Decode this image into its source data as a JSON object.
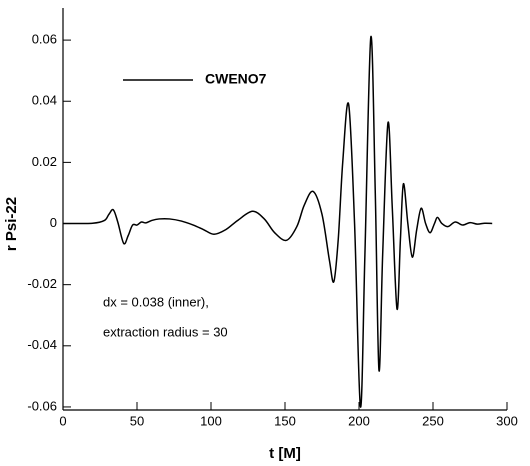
{
  "chart_data": {
    "type": "line",
    "legend": "CWENO7",
    "x_label": "t [M]",
    "y_label": "r Psi-22",
    "annotations": [
      "dx = 0.038 (inner),",
      "extraction radius = 30"
    ],
    "xlim": [
      0,
      300
    ],
    "xticks": [
      0,
      50,
      100,
      150,
      200,
      250,
      300
    ],
    "ylim": [
      -0.061,
      0.0705
    ],
    "yticks": [
      -0.06,
      -0.04,
      -0.02,
      0,
      0.02,
      0.04,
      0.06
    ],
    "color": "#000000",
    "x": [
      0,
      20,
      28,
      31,
      34,
      37,
      41,
      44,
      47,
      50,
      53,
      56,
      60,
      65,
      72,
      80,
      88,
      95,
      102,
      110,
      118,
      128,
      136,
      143,
      151,
      158,
      163,
      169,
      175,
      180,
      183,
      186,
      189,
      193,
      197,
      201,
      204,
      208,
      211,
      213.5,
      216,
      219.6,
      222.5,
      225.7,
      228,
      230,
      233,
      236,
      239,
      242,
      245,
      248,
      251,
      253,
      256,
      260,
      265,
      270,
      275,
      280,
      285,
      290
    ],
    "values": [
      0,
      0.0001,
      0.001,
      0.003,
      0.0045,
      0.0005,
      -0.0065,
      -0.004,
      -0.0005,
      -0.0005,
      0.0005,
      0.0002,
      0.001,
      0.0015,
      0.0015,
      0.0008,
      -0.0005,
      -0.002,
      -0.0035,
      -0.002,
      0.001,
      0.004,
      0.0015,
      -0.003,
      -0.0055,
      -0.001,
      0.006,
      0.0105,
      0.003,
      -0.012,
      -0.019,
      -0.005,
      0.02,
      0.039,
      0.0,
      -0.06,
      -0.01,
      0.061,
      0.01,
      -0.048,
      -0.01,
      0.033,
      0.005,
      -0.028,
      -0.005,
      0.013,
      0.0,
      -0.011,
      -0.002,
      0.005,
      0.0,
      -0.003,
      0.0,
      0.002,
      0.0,
      -0.001,
      0.0005,
      -0.0005,
      0.0003,
      -0.0002,
      0.0001,
      0
    ]
  }
}
